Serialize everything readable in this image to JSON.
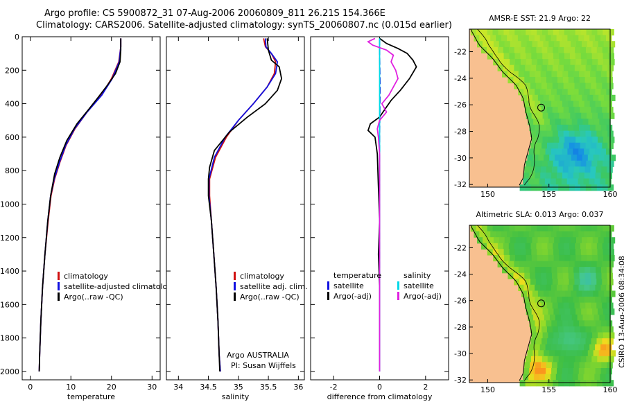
{
  "header": {
    "title_line1": "Argo profile: CS 5900872_31 07-Aug-2006 20060809_811 26.21S 154.366E",
    "title_line2": "Climatology: CARS2006. Satellite-adjusted climatology: synTS_20060807.nc (0.015d earlier)"
  },
  "credit": "CSIRO 13-Aug-2006 08:34:08",
  "colors": {
    "climatology": "#d01010",
    "satellite": "#1010e0",
    "argo": "#000000",
    "satellite_diff": "#00d8e8",
    "argo_adj_sal": "#e020e0",
    "land": "#f8c090"
  },
  "chart_data": [
    {
      "type": "line",
      "xlabel": "temperature",
      "ylim": [
        0,
        2050
      ],
      "y_inverted": true,
      "xlim": [
        -2,
        32
      ],
      "xticks": [
        "0",
        "10",
        "20",
        "30"
      ],
      "yticks": [
        "0",
        "200",
        "400",
        "600",
        "800",
        "1000",
        "1200",
        "1400",
        "1600",
        "1800",
        "2000"
      ],
      "legend": [
        "climatology",
        "satellite-adjusted climatology",
        "Argo(..raw -QC)"
      ],
      "legend_position": "lower-middle",
      "series": [
        {
          "name": "climatology",
          "color_key": "climatology",
          "points": [
            [
              22.3,
              10
            ],
            [
              22.3,
              60
            ],
            [
              21.8,
              150
            ],
            [
              20.0,
              250
            ],
            [
              17.5,
              350
            ],
            [
              14.0,
              450
            ],
            [
              11.0,
              550
            ],
            [
              8.8,
              650
            ],
            [
              7.3,
              750
            ],
            [
              6.0,
              850
            ],
            [
              5.1,
              950
            ],
            [
              4.4,
              1100
            ],
            [
              3.6,
              1300
            ],
            [
              3.0,
              1500
            ],
            [
              2.6,
              1700
            ],
            [
              2.3,
              1900
            ],
            [
              2.2,
              2000
            ]
          ]
        },
        {
          "name": "satellite-adjusted climatology",
          "color_key": "satellite",
          "points": [
            [
              22.3,
              10
            ],
            [
              22.3,
              60
            ],
            [
              21.9,
              150
            ],
            [
              20.2,
              250
            ],
            [
              17.6,
              350
            ],
            [
              14.0,
              450
            ],
            [
              10.9,
              550
            ],
            [
              8.7,
              650
            ],
            [
              7.2,
              750
            ],
            [
              5.9,
              850
            ],
            [
              5.0,
              950
            ],
            [
              4.3,
              1100
            ],
            [
              3.6,
              1300
            ],
            [
              3.0,
              1500
            ],
            [
              2.6,
              1700
            ],
            [
              2.3,
              1900
            ],
            [
              2.2,
              2000
            ]
          ]
        },
        {
          "name": "Argo(..raw -QC)",
          "color_key": "argo",
          "points": [
            [
              22.3,
              10
            ],
            [
              22.3,
              80
            ],
            [
              22.1,
              150
            ],
            [
              21.0,
              220
            ],
            [
              19.0,
              290
            ],
            [
              16.8,
              360
            ],
            [
              14.2,
              440
            ],
            [
              11.5,
              520
            ],
            [
              9.0,
              620
            ],
            [
              7.3,
              720
            ],
            [
              6.0,
              820
            ],
            [
              5.0,
              950
            ],
            [
              4.3,
              1100
            ],
            [
              3.6,
              1300
            ],
            [
              3.0,
              1500
            ],
            [
              2.6,
              1700
            ],
            [
              2.3,
              1900
            ],
            [
              2.2,
              2000
            ]
          ]
        }
      ]
    },
    {
      "type": "line",
      "xlabel": "salinity",
      "ylim": [
        0,
        2050
      ],
      "y_inverted": true,
      "xlim": [
        33.8,
        36.1
      ],
      "xticks": [
        "34",
        "34.5",
        "35",
        "35.5",
        "36"
      ],
      "legend": [
        "climatology",
        "satellite adj. clim.",
        "Argo(..raw -QC)"
      ],
      "legend_position": "lower-middle",
      "annotation": [
        "Argo AUSTRALIA",
        "PI: Susan Wijffels"
      ],
      "series": [
        {
          "name": "climatology",
          "color_key": "climatology",
          "points": [
            [
              35.42,
              10
            ],
            [
              35.45,
              60
            ],
            [
              35.55,
              100
            ],
            [
              35.62,
              150
            ],
            [
              35.6,
              220
            ],
            [
              35.48,
              300
            ],
            [
              35.25,
              400
            ],
            [
              35.0,
              500
            ],
            [
              34.8,
              600
            ],
            [
              34.62,
              720
            ],
            [
              34.52,
              850
            ],
            [
              34.52,
              950
            ],
            [
              34.55,
              1100
            ],
            [
              34.59,
              1300
            ],
            [
              34.63,
              1500
            ],
            [
              34.66,
              1700
            ],
            [
              34.68,
              1900
            ],
            [
              34.7,
              2000
            ]
          ]
        },
        {
          "name": "satellite adj. clim.",
          "color_key": "satellite",
          "points": [
            [
              35.45,
              10
            ],
            [
              35.46,
              60
            ],
            [
              35.55,
              100
            ],
            [
              35.65,
              150
            ],
            [
              35.62,
              220
            ],
            [
              35.48,
              300
            ],
            [
              35.25,
              400
            ],
            [
              35.0,
              500
            ],
            [
              34.78,
              600
            ],
            [
              34.6,
              720
            ],
            [
              34.51,
              850
            ],
            [
              34.51,
              950
            ],
            [
              34.55,
              1100
            ],
            [
              34.59,
              1300
            ],
            [
              34.63,
              1500
            ],
            [
              34.66,
              1700
            ],
            [
              34.68,
              1900
            ],
            [
              34.7,
              2000
            ]
          ]
        },
        {
          "name": "Argo(..raw -QC)",
          "color_key": "argo",
          "points": [
            [
              35.48,
              10
            ],
            [
              35.5,
              80
            ],
            [
              35.55,
              140
            ],
            [
              35.68,
              180
            ],
            [
              35.72,
              250
            ],
            [
              35.65,
              320
            ],
            [
              35.45,
              400
            ],
            [
              35.15,
              480
            ],
            [
              34.85,
              570
            ],
            [
              34.6,
              680
            ],
            [
              34.52,
              780
            ],
            [
              34.5,
              850
            ],
            [
              34.5,
              950
            ],
            [
              34.55,
              1100
            ],
            [
              34.59,
              1300
            ],
            [
              34.63,
              1500
            ],
            [
              34.66,
              1700
            ],
            [
              34.68,
              1900
            ],
            [
              34.69,
              2000
            ]
          ]
        }
      ]
    },
    {
      "type": "line",
      "xlabel": "difference from climatology",
      "ylim": [
        0,
        2050
      ],
      "y_inverted": true,
      "xlim": [
        -3,
        3
      ],
      "xticks": [
        "-2",
        "0",
        "2"
      ],
      "legend_temperature": [
        "temperature",
        "satellite",
        "Argo(-adj)"
      ],
      "legend_salinity": [
        "salinity",
        "satellite",
        "Argo(-adj)"
      ],
      "legend_position": "lower-middle",
      "series": [
        {
          "name": "temperature satellite",
          "color_key": "satellite",
          "dashed": true,
          "points": [
            [
              0.0,
              10
            ],
            [
              0.0,
              100
            ],
            [
              0.02,
              300
            ],
            [
              0.0,
              600
            ],
            [
              0.0,
              1000
            ],
            [
              0.0,
              1500
            ],
            [
              0.0,
              2000
            ]
          ]
        },
        {
          "name": "temperature Argo(-adj)",
          "color_key": "argo",
          "points": [
            [
              0.0,
              10
            ],
            [
              0.3,
              40
            ],
            [
              0.8,
              70
            ],
            [
              1.2,
              100
            ],
            [
              1.45,
              140
            ],
            [
              1.6,
              180
            ],
            [
              1.3,
              250
            ],
            [
              0.9,
              320
            ],
            [
              0.5,
              380
            ],
            [
              0.2,
              440
            ],
            [
              0.0,
              480
            ],
            [
              -0.4,
              520
            ],
            [
              -0.5,
              560
            ],
            [
              -0.2,
              600
            ],
            [
              -0.1,
              700
            ],
            [
              -0.05,
              900
            ],
            [
              0.0,
              1100
            ],
            [
              -0.05,
              1300
            ],
            [
              0.0,
              1500
            ],
            [
              0.0,
              1800
            ],
            [
              0.0,
              2000
            ]
          ]
        },
        {
          "name": "salinity satellite",
          "color_key": "satellite_diff",
          "points": [
            [
              0.0,
              10
            ],
            [
              0.0,
              200
            ],
            [
              0.0,
              600
            ],
            [
              0.0,
              1000
            ],
            [
              0.0,
              1500
            ],
            [
              0.0,
              2000
            ]
          ]
        },
        {
          "name": "salinity Argo(-adj)",
          "color_key": "argo_adj_sal",
          "points": [
            [
              -0.2,
              10
            ],
            [
              -0.5,
              30
            ],
            [
              -0.3,
              50
            ],
            [
              0.3,
              80
            ],
            [
              0.6,
              110
            ],
            [
              0.5,
              150
            ],
            [
              0.7,
              200
            ],
            [
              0.8,
              250
            ],
            [
              0.6,
              300
            ],
            [
              0.4,
              350
            ],
            [
              0.1,
              400
            ],
            [
              0.3,
              450
            ],
            [
              0.0,
              500
            ],
            [
              -0.1,
              550
            ],
            [
              -0.05,
              600
            ],
            [
              0.0,
              700
            ],
            [
              0.0,
              1000
            ],
            [
              0.0,
              1500
            ],
            [
              0.0,
              2000
            ]
          ]
        }
      ]
    },
    {
      "type": "heatmap",
      "title": "AMSR-E SST: 21.9 Argo: 22",
      "xlim": [
        148.5,
        160
      ],
      "ylim": [
        -32.2,
        -20.3
      ],
      "xticks": [
        "150",
        "155",
        "160"
      ],
      "yticks": [
        "-22",
        "-24",
        "-26",
        "-28",
        "-30",
        "-32"
      ],
      "marker": {
        "lon": 154.366,
        "lat": -26.21
      }
    },
    {
      "type": "heatmap",
      "title": "Altimetric SLA: 0.013 Argo: 0.037",
      "xlim": [
        148.5,
        160
      ],
      "ylim": [
        -32.2,
        -20.3
      ],
      "xticks": [
        "150",
        "155",
        "160"
      ],
      "yticks": [
        "-22",
        "-24",
        "-26",
        "-28",
        "-30",
        "-32"
      ],
      "marker": {
        "lon": 154.366,
        "lat": -26.21
      }
    }
  ]
}
